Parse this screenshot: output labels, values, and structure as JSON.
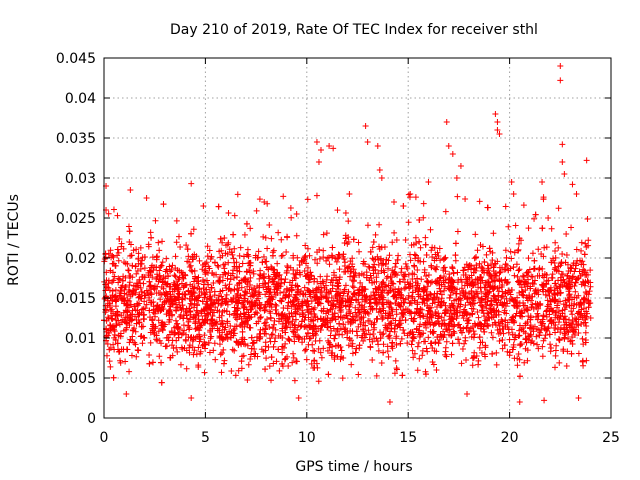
{
  "chart_data": {
    "type": "scatter",
    "title": "Day 210 of 2019, Rate Of TEC Index for receiver sthl",
    "xlabel": "GPS time / hours",
    "ylabel": "ROTI / TECUs",
    "xlim": [
      0,
      25
    ],
    "ylim": [
      0,
      0.045
    ],
    "x_ticks": [
      0,
      5,
      10,
      15,
      20,
      25
    ],
    "x_tick_labels": [
      "0",
      "5",
      "10",
      "15",
      "20",
      "25"
    ],
    "y_ticks": [
      0,
      0.005,
      0.01,
      0.015,
      0.02,
      0.025,
      0.03,
      0.035,
      0.04,
      0.045
    ],
    "y_tick_labels": [
      "0",
      "0.005",
      "0.01",
      "0.015",
      "0.02",
      "0.025",
      "0.03",
      "0.035",
      "0.04",
      "0.045"
    ],
    "grid": true,
    "marker": "+",
    "series": [
      {
        "name": "ROTI",
        "color": "#ff0000",
        "x_range": [
          0,
          24
        ],
        "typical_band": [
          0.004,
          0.024
        ],
        "notable_points": [
          {
            "x": 0.1,
            "y": 0.029
          },
          {
            "x": 0.1,
            "y": 0.026
          },
          {
            "x": 1.3,
            "y": 0.0285
          },
          {
            "x": 2.1,
            "y": 0.0275
          },
          {
            "x": 4.3,
            "y": 0.0293
          },
          {
            "x": 4.9,
            "y": 0.0265
          },
          {
            "x": 7.9,
            "y": 0.027
          },
          {
            "x": 9.5,
            "y": 0.0255
          },
          {
            "x": 10.5,
            "y": 0.0345
          },
          {
            "x": 10.6,
            "y": 0.032
          },
          {
            "x": 10.7,
            "y": 0.0335
          },
          {
            "x": 11.1,
            "y": 0.034
          },
          {
            "x": 11.3,
            "y": 0.0337
          },
          {
            "x": 10.5,
            "y": 0.0278
          },
          {
            "x": 12.1,
            "y": 0.028
          },
          {
            "x": 12.9,
            "y": 0.0365
          },
          {
            "x": 13.0,
            "y": 0.0345
          },
          {
            "x": 13.5,
            "y": 0.034
          },
          {
            "x": 13.6,
            "y": 0.031
          },
          {
            "x": 13.7,
            "y": 0.03
          },
          {
            "x": 14.3,
            "y": 0.027
          },
          {
            "x": 15.1,
            "y": 0.028
          },
          {
            "x": 16.0,
            "y": 0.0295
          },
          {
            "x": 16.9,
            "y": 0.037
          },
          {
            "x": 17.0,
            "y": 0.034
          },
          {
            "x": 17.2,
            "y": 0.033
          },
          {
            "x": 17.4,
            "y": 0.03
          },
          {
            "x": 17.6,
            "y": 0.0315
          },
          {
            "x": 19.3,
            "y": 0.038
          },
          {
            "x": 19.4,
            "y": 0.037
          },
          {
            "x": 19.5,
            "y": 0.0355
          },
          {
            "x": 19.4,
            "y": 0.036
          },
          {
            "x": 20.1,
            "y": 0.0295
          },
          {
            "x": 20.2,
            "y": 0.028
          },
          {
            "x": 21.6,
            "y": 0.0295
          },
          {
            "x": 22.5,
            "y": 0.044
          },
          {
            "x": 22.5,
            "y": 0.0422
          },
          {
            "x": 22.6,
            "y": 0.0342
          },
          {
            "x": 22.6,
            "y": 0.032
          },
          {
            "x": 22.7,
            "y": 0.0305
          },
          {
            "x": 23.1,
            "y": 0.0292
          },
          {
            "x": 23.3,
            "y": 0.028
          },
          {
            "x": 23.8,
            "y": 0.0322
          },
          {
            "x": 21.9,
            "y": 0.025
          },
          {
            "x": 4.3,
            "y": 0.0025
          },
          {
            "x": 9.6,
            "y": 0.0025
          },
          {
            "x": 14.1,
            "y": 0.002
          },
          {
            "x": 20.5,
            "y": 0.002
          },
          {
            "x": 21.7,
            "y": 0.0022
          },
          {
            "x": 23.4,
            "y": 0.0025
          },
          {
            "x": 1.1,
            "y": 0.003
          },
          {
            "x": 17.9,
            "y": 0.003
          }
        ]
      }
    ]
  }
}
